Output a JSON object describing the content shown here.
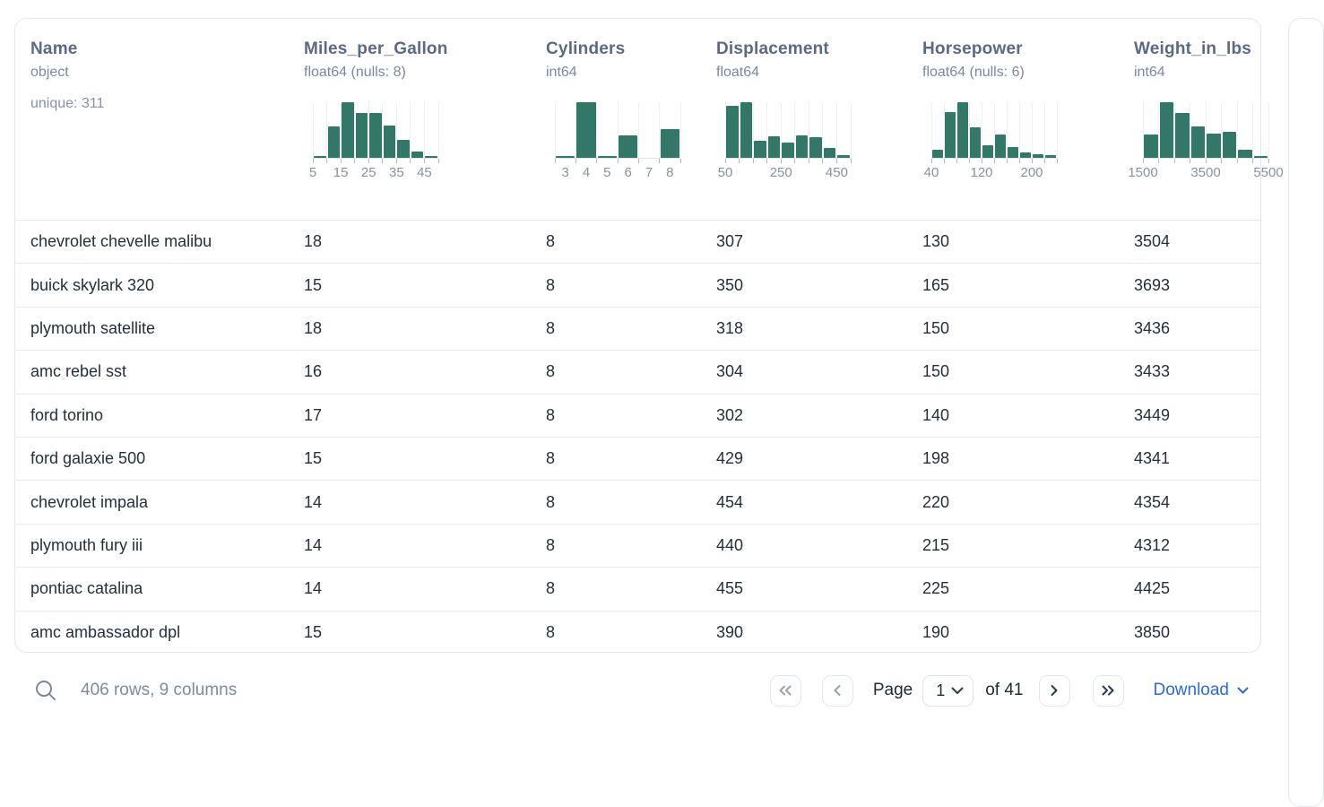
{
  "table": {
    "columns": [
      {
        "name": "Name",
        "dtype": "object",
        "extra": "unique: 311",
        "histogram": null
      },
      {
        "name": "Miles_per_Gallon",
        "dtype": "float64 (nulls: 8)",
        "extra": "",
        "histogram": {
          "type": "histogram",
          "bar_heights": [
            0.03,
            0.56,
            1.0,
            0.81,
            0.81,
            0.58,
            0.32,
            0.11,
            0.03
          ],
          "axis_labels": [
            {
              "text": "5",
              "at": 0
            },
            {
              "text": "15",
              "at": 2
            },
            {
              "text": "25",
              "at": 4
            },
            {
              "text": "35",
              "at": 6
            },
            {
              "text": "45",
              "at": 8
            }
          ],
          "label_anchor": "boundary"
        }
      },
      {
        "name": "Cylinders",
        "dtype": "int64",
        "extra": "",
        "histogram": {
          "type": "histogram",
          "bar_heights": [
            0.04,
            1.0,
            0.03,
            0.4,
            0,
            0.52
          ],
          "axis_labels": [
            {
              "text": "3",
              "at": 0
            },
            {
              "text": "4",
              "at": 1
            },
            {
              "text": "5",
              "at": 2
            },
            {
              "text": "6",
              "at": 3
            },
            {
              "text": "7",
              "at": 4
            },
            {
              "text": "8",
              "at": 5
            }
          ],
          "label_anchor": "bin-center"
        }
      },
      {
        "name": "Displacement",
        "dtype": "float64",
        "extra": "",
        "histogram": {
          "type": "histogram",
          "bar_heights": [
            0.93,
            1.0,
            0.3,
            0.38,
            0.27,
            0.4,
            0.37,
            0.17,
            0.05
          ],
          "axis_labels": [
            {
              "text": "50",
              "at": 0
            },
            {
              "text": "250",
              "at": 4
            },
            {
              "text": "450",
              "at": 8
            }
          ],
          "label_anchor": "boundary"
        }
      },
      {
        "name": "Horsepower",
        "dtype": "float64 (nulls: 6)",
        "extra": "",
        "histogram": {
          "type": "histogram",
          "bar_heights": [
            0.15,
            0.82,
            1.0,
            0.55,
            0.22,
            0.42,
            0.2,
            0.1,
            0.07,
            0.05
          ],
          "axis_labels": [
            {
              "text": "40",
              "at": 0
            },
            {
              "text": "120",
              "at": 4
            },
            {
              "text": "200",
              "at": 8
            }
          ],
          "label_anchor": "boundary"
        }
      },
      {
        "name": "Weight_in_lbs",
        "dtype": "int64",
        "extra": "",
        "histogram": {
          "type": "histogram",
          "bar_heights": [
            0.42,
            1.0,
            0.8,
            0.56,
            0.43,
            0.46,
            0.15,
            0.02
          ],
          "axis_labels": [
            {
              "text": "1500",
              "at": 0
            },
            {
              "text": "3500",
              "at": 4
            },
            {
              "text": "5500",
              "at": 8
            }
          ],
          "label_anchor": "boundary"
        }
      }
    ],
    "rows": [
      [
        "chevrolet chevelle malibu",
        "18",
        "8",
        "307",
        "130",
        "3504"
      ],
      [
        "buick skylark 320",
        "15",
        "8",
        "350",
        "165",
        "3693"
      ],
      [
        "plymouth satellite",
        "18",
        "8",
        "318",
        "150",
        "3436"
      ],
      [
        "amc rebel sst",
        "16",
        "8",
        "304",
        "150",
        "3433"
      ],
      [
        "ford torino",
        "17",
        "8",
        "302",
        "140",
        "3449"
      ],
      [
        "ford galaxie 500",
        "15",
        "8",
        "429",
        "198",
        "4341"
      ],
      [
        "chevrolet impala",
        "14",
        "8",
        "454",
        "220",
        "4354"
      ],
      [
        "plymouth fury iii",
        "14",
        "8",
        "440",
        "215",
        "4312"
      ],
      [
        "pontiac catalina",
        "14",
        "8",
        "455",
        "225",
        "4425"
      ],
      [
        "amc ambassador dpl",
        "15",
        "8",
        "390",
        "190",
        "3850"
      ]
    ]
  },
  "footer": {
    "summary": "406 rows, 9 columns",
    "page_label": "Page",
    "current_page": "1",
    "total_pages_label": "of 41",
    "download_label": "Download"
  },
  "colors": {
    "bar_green": "#327767",
    "accent_blue": "#2b6ae0",
    "chevron_enabled": "#2c3a50",
    "chevron_disabled": "#97a1b0",
    "icon_gray": "#78859a"
  }
}
